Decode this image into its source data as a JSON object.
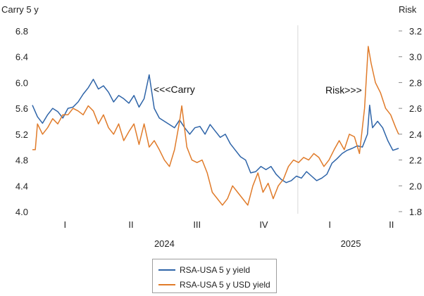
{
  "chart_data": {
    "type": "line",
    "left_axis_title": "Carry 5 y",
    "right_axis_title": "Risk",
    "y_left_range": [
      4.0,
      6.8
    ],
    "y_left_ticks": [
      "4.0",
      "4.4",
      "4.8",
      "5.2",
      "5.6",
      "6.0",
      "6.4",
      "6.8"
    ],
    "y_right_range": [
      1.8,
      3.2
    ],
    "y_right_ticks": [
      "1.8",
      "2.0",
      "2.2",
      "2.4",
      "2.6",
      "2.8",
      "3.0",
      "3.2"
    ],
    "x_range": [
      "2024-01-01",
      "2025-05-20"
    ],
    "x_quarter_labels": [
      {
        "label": "I",
        "date": "2024-02-15"
      },
      {
        "label": "II",
        "date": "2024-05-16"
      },
      {
        "label": "III",
        "date": "2024-08-15"
      },
      {
        "label": "IV",
        "date": "2024-11-15"
      },
      {
        "label": "I",
        "date": "2025-02-14"
      },
      {
        "label": "II",
        "date": "2025-05-10"
      }
    ],
    "x_year_labels": [
      {
        "label": "2024",
        "date": "2024-07-01"
      },
      {
        "label": "2025",
        "date": "2025-03-15"
      }
    ],
    "year_divider_date": "2025-01-01",
    "annotations": [
      "<<<Carry",
      "Risk>>>"
    ],
    "series": [
      {
        "name": "RSA-USA 5 y yield",
        "axis": "left",
        "color": "#2e64a8",
        "points": [
          [
            "2024-01-01",
            5.65
          ],
          [
            "2024-01-08",
            5.47
          ],
          [
            "2024-01-15",
            5.37
          ],
          [
            "2024-01-22",
            5.5
          ],
          [
            "2024-01-29",
            5.6
          ],
          [
            "2024-02-05",
            5.55
          ],
          [
            "2024-02-12",
            5.45
          ],
          [
            "2024-02-19",
            5.6
          ],
          [
            "2024-02-26",
            5.62
          ],
          [
            "2024-03-04",
            5.7
          ],
          [
            "2024-03-11",
            5.82
          ],
          [
            "2024-03-18",
            5.92
          ],
          [
            "2024-03-25",
            6.05
          ],
          [
            "2024-04-01",
            5.9
          ],
          [
            "2024-04-08",
            5.95
          ],
          [
            "2024-04-15",
            5.85
          ],
          [
            "2024-04-22",
            5.7
          ],
          [
            "2024-04-29",
            5.8
          ],
          [
            "2024-05-06",
            5.75
          ],
          [
            "2024-05-13",
            5.68
          ],
          [
            "2024-05-20",
            5.8
          ],
          [
            "2024-05-27",
            5.62
          ],
          [
            "2024-06-03",
            5.75
          ],
          [
            "2024-06-10",
            6.12
          ],
          [
            "2024-06-17",
            5.6
          ],
          [
            "2024-06-24",
            5.45
          ],
          [
            "2024-07-01",
            5.4
          ],
          [
            "2024-07-08",
            5.35
          ],
          [
            "2024-07-15",
            5.3
          ],
          [
            "2024-07-22",
            5.42
          ],
          [
            "2024-07-29",
            5.3
          ],
          [
            "2024-08-05",
            5.2
          ],
          [
            "2024-08-12",
            5.3
          ],
          [
            "2024-08-19",
            5.32
          ],
          [
            "2024-08-26",
            5.2
          ],
          [
            "2024-09-02",
            5.35
          ],
          [
            "2024-09-09",
            5.25
          ],
          [
            "2024-09-16",
            5.15
          ],
          [
            "2024-09-23",
            5.2
          ],
          [
            "2024-09-30",
            5.05
          ],
          [
            "2024-10-07",
            4.95
          ],
          [
            "2024-10-14",
            4.85
          ],
          [
            "2024-10-21",
            4.8
          ],
          [
            "2024-10-28",
            4.6
          ],
          [
            "2024-11-04",
            4.62
          ],
          [
            "2024-11-11",
            4.7
          ],
          [
            "2024-11-18",
            4.65
          ],
          [
            "2024-11-25",
            4.7
          ],
          [
            "2024-12-02",
            4.58
          ],
          [
            "2024-12-09",
            4.5
          ],
          [
            "2024-12-16",
            4.45
          ],
          [
            "2024-12-23",
            4.48
          ],
          [
            "2024-12-30",
            4.55
          ],
          [
            "2025-01-06",
            4.52
          ],
          [
            "2025-01-13",
            4.62
          ],
          [
            "2025-01-20",
            4.55
          ],
          [
            "2025-01-27",
            4.48
          ],
          [
            "2025-02-03",
            4.52
          ],
          [
            "2025-02-10",
            4.58
          ],
          [
            "2025-02-17",
            4.75
          ],
          [
            "2025-02-24",
            4.82
          ],
          [
            "2025-03-03",
            4.9
          ],
          [
            "2025-03-10",
            4.95
          ],
          [
            "2025-03-17",
            4.98
          ],
          [
            "2025-03-24",
            5.02
          ],
          [
            "2025-03-31",
            5.0
          ],
          [
            "2025-04-07",
            5.2
          ],
          [
            "2025-04-10",
            5.65
          ],
          [
            "2025-04-14",
            5.3
          ],
          [
            "2025-04-21",
            5.4
          ],
          [
            "2025-04-28",
            5.3
          ],
          [
            "2025-05-05",
            5.1
          ],
          [
            "2025-05-12",
            4.95
          ],
          [
            "2025-05-20",
            4.98
          ]
        ]
      },
      {
        "name": "RSA-USA 5 y USD yield",
        "axis": "right",
        "color": "#e07b2a",
        "points": [
          [
            "2024-01-01",
            2.28
          ],
          [
            "2024-01-05",
            2.28
          ],
          [
            "2024-01-08",
            2.48
          ],
          [
            "2024-01-15",
            2.4
          ],
          [
            "2024-01-22",
            2.45
          ],
          [
            "2024-01-29",
            2.52
          ],
          [
            "2024-02-05",
            2.48
          ],
          [
            "2024-02-12",
            2.55
          ],
          [
            "2024-02-19",
            2.55
          ],
          [
            "2024-02-26",
            2.6
          ],
          [
            "2024-03-04",
            2.58
          ],
          [
            "2024-03-11",
            2.55
          ],
          [
            "2024-03-18",
            2.62
          ],
          [
            "2024-03-25",
            2.58
          ],
          [
            "2024-04-01",
            2.48
          ],
          [
            "2024-04-08",
            2.55
          ],
          [
            "2024-04-15",
            2.45
          ],
          [
            "2024-04-22",
            2.4
          ],
          [
            "2024-04-29",
            2.48
          ],
          [
            "2024-05-06",
            2.35
          ],
          [
            "2024-05-13",
            2.42
          ],
          [
            "2024-05-20",
            2.48
          ],
          [
            "2024-05-27",
            2.32
          ],
          [
            "2024-06-03",
            2.48
          ],
          [
            "2024-06-10",
            2.3
          ],
          [
            "2024-06-17",
            2.35
          ],
          [
            "2024-06-24",
            2.28
          ],
          [
            "2024-07-01",
            2.2
          ],
          [
            "2024-07-08",
            2.15
          ],
          [
            "2024-07-15",
            2.28
          ],
          [
            "2024-07-22",
            2.5
          ],
          [
            "2024-07-25",
            2.62
          ],
          [
            "2024-08-01",
            2.3
          ],
          [
            "2024-08-08",
            2.2
          ],
          [
            "2024-08-15",
            2.18
          ],
          [
            "2024-08-22",
            2.2
          ],
          [
            "2024-08-29",
            2.1
          ],
          [
            "2024-09-05",
            1.95
          ],
          [
            "2024-09-12",
            1.9
          ],
          [
            "2024-09-19",
            1.85
          ],
          [
            "2024-09-26",
            1.9
          ],
          [
            "2024-10-03",
            2.0
          ],
          [
            "2024-10-10",
            1.95
          ],
          [
            "2024-10-17",
            1.9
          ],
          [
            "2024-10-24",
            1.85
          ],
          [
            "2024-10-31",
            2.0
          ],
          [
            "2024-11-07",
            2.1
          ],
          [
            "2024-11-14",
            1.95
          ],
          [
            "2024-11-21",
            2.02
          ],
          [
            "2024-11-28",
            1.9
          ],
          [
            "2024-12-05",
            2.0
          ],
          [
            "2024-12-12",
            2.05
          ],
          [
            "2024-12-19",
            2.15
          ],
          [
            "2024-12-26",
            2.2
          ],
          [
            "2025-01-02",
            2.18
          ],
          [
            "2025-01-09",
            2.22
          ],
          [
            "2025-01-16",
            2.2
          ],
          [
            "2025-01-23",
            2.25
          ],
          [
            "2025-01-30",
            2.22
          ],
          [
            "2025-02-06",
            2.15
          ],
          [
            "2025-02-13",
            2.2
          ],
          [
            "2025-02-20",
            2.28
          ],
          [
            "2025-02-27",
            2.35
          ],
          [
            "2025-03-06",
            2.28
          ],
          [
            "2025-03-13",
            2.4
          ],
          [
            "2025-03-20",
            2.38
          ],
          [
            "2025-03-27",
            2.25
          ],
          [
            "2025-04-03",
            2.6
          ],
          [
            "2025-04-08",
            3.08
          ],
          [
            "2025-04-12",
            2.95
          ],
          [
            "2025-04-18",
            2.8
          ],
          [
            "2025-04-25",
            2.72
          ],
          [
            "2025-05-02",
            2.6
          ],
          [
            "2025-05-09",
            2.55
          ],
          [
            "2025-05-16",
            2.45
          ],
          [
            "2025-05-20",
            2.4
          ]
        ]
      }
    ]
  }
}
